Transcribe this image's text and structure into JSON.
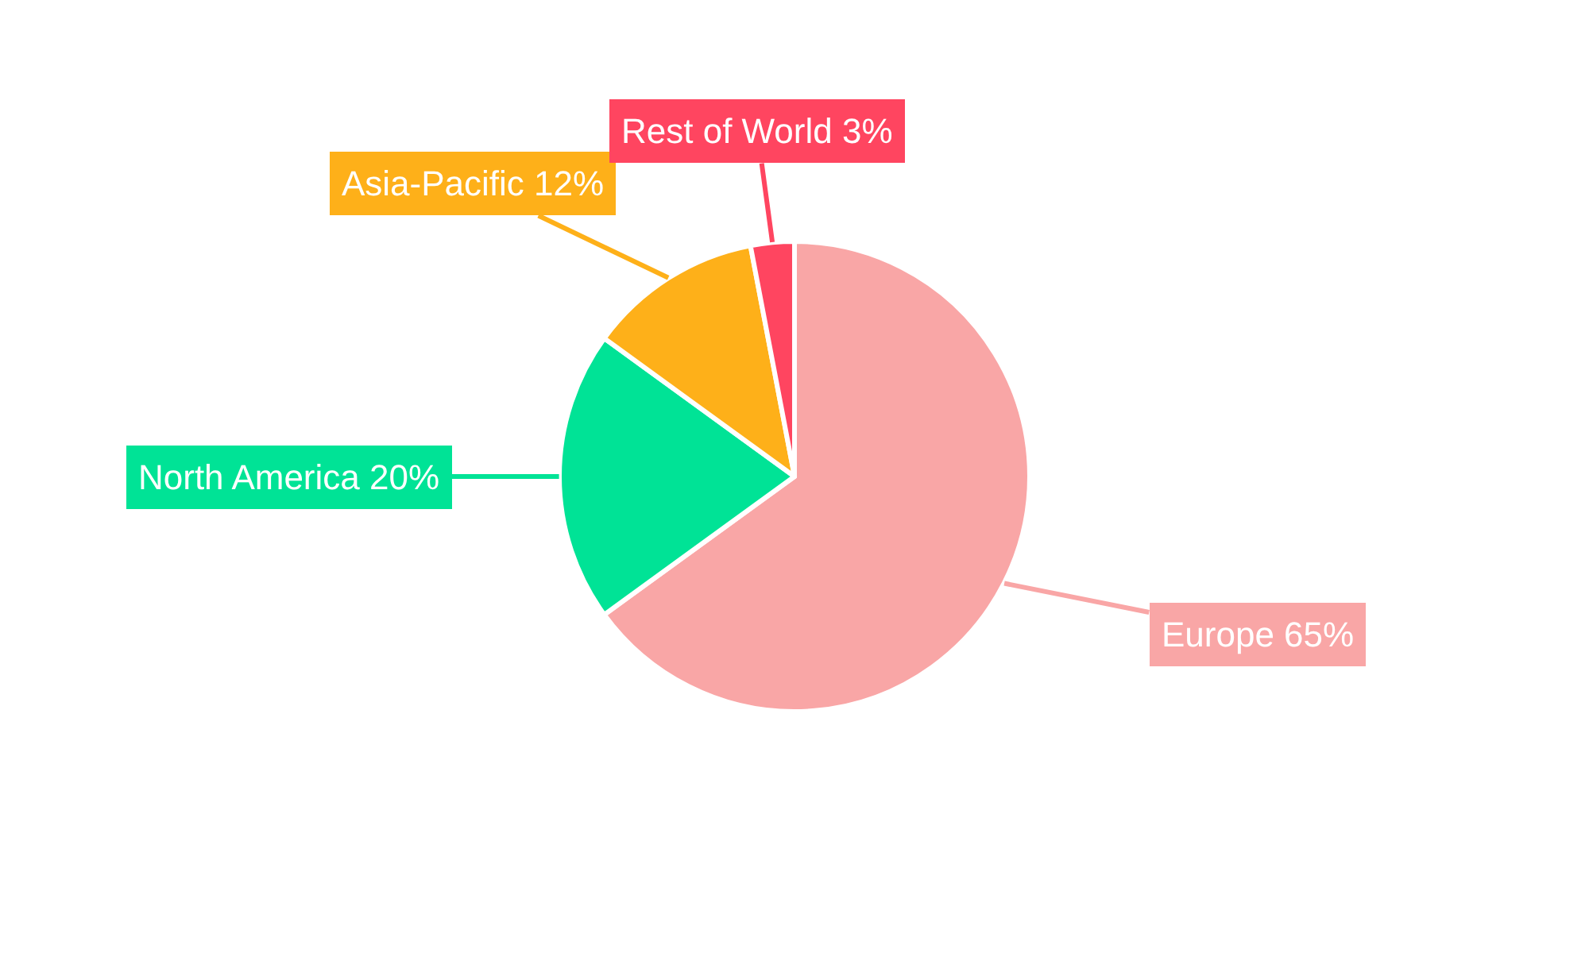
{
  "chart_data": {
    "type": "pie",
    "categories": [
      "Europe",
      "North America",
      "Asia-Pacific",
      "Rest of World"
    ],
    "values": [
      65,
      20,
      12,
      3
    ],
    "value_labels": [
      "65%",
      "20%",
      "12%",
      "3%"
    ],
    "colors": [
      "#f9a6a6",
      "#00e396",
      "#feb019",
      "#ff4560"
    ],
    "legend": false
  }
}
